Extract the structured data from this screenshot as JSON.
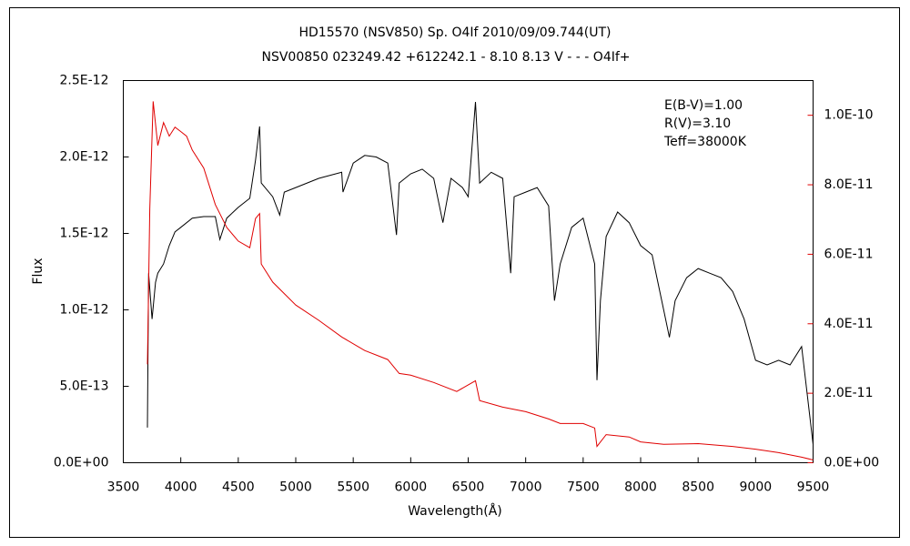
{
  "chart_data": {
    "type": "line",
    "title": "HD15570 (NSV850)     Sp. O4If    2010/09/09.744(UT)",
    "subtitle": "NSV00850 023249.42 +612242.1 - 8.10 8.13 V - - - O4If+",
    "x_label": "Wavelength(Å)",
    "y_label": "Flux",
    "annotations": [
      "E(B-V)=1.00",
      "R(V)=3.10",
      "Teff=38000K"
    ],
    "annotation_color": "#e00000",
    "xlim": [
      3500,
      9500
    ],
    "xticks": [
      3500,
      4000,
      4500,
      5000,
      5500,
      6000,
      6500,
      7000,
      7500,
      8000,
      8500,
      9000,
      9500
    ],
    "ylim": [
      0,
      2.5e-12
    ],
    "yticks": [
      {
        "value": 0,
        "label": "0.0E+00"
      },
      {
        "value": 5e-13,
        "label": "5.0E-13"
      },
      {
        "value": 1e-12,
        "label": "1.0E-12"
      },
      {
        "value": 1.5e-12,
        "label": "1.5E-12"
      },
      {
        "value": 2e-12,
        "label": "2.0E-12"
      },
      {
        "value": 2.5e-12,
        "label": "2.5E-12"
      }
    ],
    "y2lim": [
      0,
      1.1e-10
    ],
    "y2ticks": [
      {
        "value": 0,
        "label": "0.0E+00"
      },
      {
        "value": 2e-11,
        "label": "2.0E-11"
      },
      {
        "value": 4e-11,
        "label": "4.0E-11"
      },
      {
        "value": 6e-11,
        "label": "6.0E-11"
      },
      {
        "value": 8e-11,
        "label": "8.0E-11"
      },
      {
        "value": 1e-10,
        "label": "1.0E-10"
      }
    ],
    "series": [
      {
        "color": "#000000",
        "x": [
          3710,
          3720,
          3750,
          3780,
          3800,
          3850,
          3900,
          3950,
          4000,
          4100,
          4200,
          4300,
          4340,
          4400,
          4500,
          4600,
          4650,
          4686,
          4700,
          4800,
          4861,
          4900,
          5000,
          5200,
          5400,
          5411,
          5500,
          5600,
          5700,
          5800,
          5876,
          5900,
          6000,
          6100,
          6200,
          6280,
          6350,
          6450,
          6500,
          6563,
          6600,
          6700,
          6800,
          6870,
          6900,
          7000,
          7100,
          7200,
          7250,
          7300,
          7400,
          7500,
          7600,
          7620,
          7650,
          7700,
          7800,
          7900,
          8000,
          8100,
          8200,
          8250,
          8300,
          8400,
          8500,
          8600,
          8700,
          8800,
          8900,
          9000,
          9100,
          9200,
          9300,
          9400,
          9500
        ],
        "values": [
          2.3e-13,
          1.24e-12,
          9.4e-13,
          1.18e-12,
          1.24e-12,
          1.3e-12,
          1.42e-12,
          1.51e-12,
          1.54e-12,
          1.6e-12,
          1.61e-12,
          1.61e-12,
          1.46e-12,
          1.6e-12,
          1.67e-12,
          1.73e-12,
          1.98e-12,
          2.2e-12,
          1.83e-12,
          1.74e-12,
          1.62e-12,
          1.77e-12,
          1.8e-12,
          1.86e-12,
          1.9e-12,
          1.77e-12,
          1.96e-12,
          2.01e-12,
          2e-12,
          1.96e-12,
          1.49e-12,
          1.83e-12,
          1.89e-12,
          1.92e-12,
          1.86e-12,
          1.57e-12,
          1.86e-12,
          1.8e-12,
          1.74e-12,
          2.36e-12,
          1.83e-12,
          1.9e-12,
          1.86e-12,
          1.24e-12,
          1.74e-12,
          1.77e-12,
          1.8e-12,
          1.68e-12,
          1.06e-12,
          1.3e-12,
          1.54e-12,
          1.6e-12,
          1.3e-12,
          5.4e-13,
          1.06e-12,
          1.48e-12,
          1.64e-12,
          1.57e-12,
          1.42e-12,
          1.36e-12,
          1e-12,
          8.2e-13,
          1.06e-12,
          1.21e-12,
          1.27e-12,
          1.24e-12,
          1.21e-12,
          1.12e-12,
          9.4e-13,
          6.7e-13,
          6.4e-13,
          6.7e-13,
          6.4e-13,
          7.6e-13,
          1.2e-13
        ]
      },
      {
        "color": "#e00000",
        "axis": "y2",
        "x": [
          3710,
          3730,
          3760,
          3800,
          3850,
          3900,
          3950,
          4000,
          4050,
          4100,
          4200,
          4300,
          4400,
          4500,
          4600,
          4650,
          4686,
          4700,
          4800,
          5000,
          5200,
          5400,
          5600,
          5800,
          5900,
          6000,
          6200,
          6400,
          6563,
          6600,
          6800,
          7000,
          7200,
          7300,
          7500,
          7600,
          7620,
          7700,
          7900,
          8000,
          8200,
          8500,
          8800,
          9000,
          9200,
          9400,
          9500
        ],
        "values": [
          2.83e-11,
          7.3e-11,
          1.04e-10,
          9.13e-11,
          9.79e-11,
          9.4e-11,
          9.66e-11,
          9.53e-11,
          9.4e-11,
          9e-11,
          8.48e-11,
          7.43e-11,
          6.77e-11,
          6.38e-11,
          6.19e-11,
          7.03e-11,
          7.17e-11,
          5.72e-11,
          5.2e-11,
          4.54e-11,
          4.1e-11,
          3.62e-11,
          3.23e-11,
          2.97e-11,
          2.57e-11,
          2.52e-11,
          2.31e-11,
          2.05e-11,
          2.36e-11,
          1.79e-11,
          1.6e-11,
          1.47e-11,
          1.26e-11,
          1.13e-11,
          1.13e-11,
          1e-11,
          4.7e-12,
          8.1e-12,
          7.4e-12,
          6e-12,
          5.3e-12,
          5.5e-12,
          4.7e-12,
          3.9e-12,
          2.9e-12,
          1.6e-12,
          8e-13
        ]
      }
    ]
  }
}
